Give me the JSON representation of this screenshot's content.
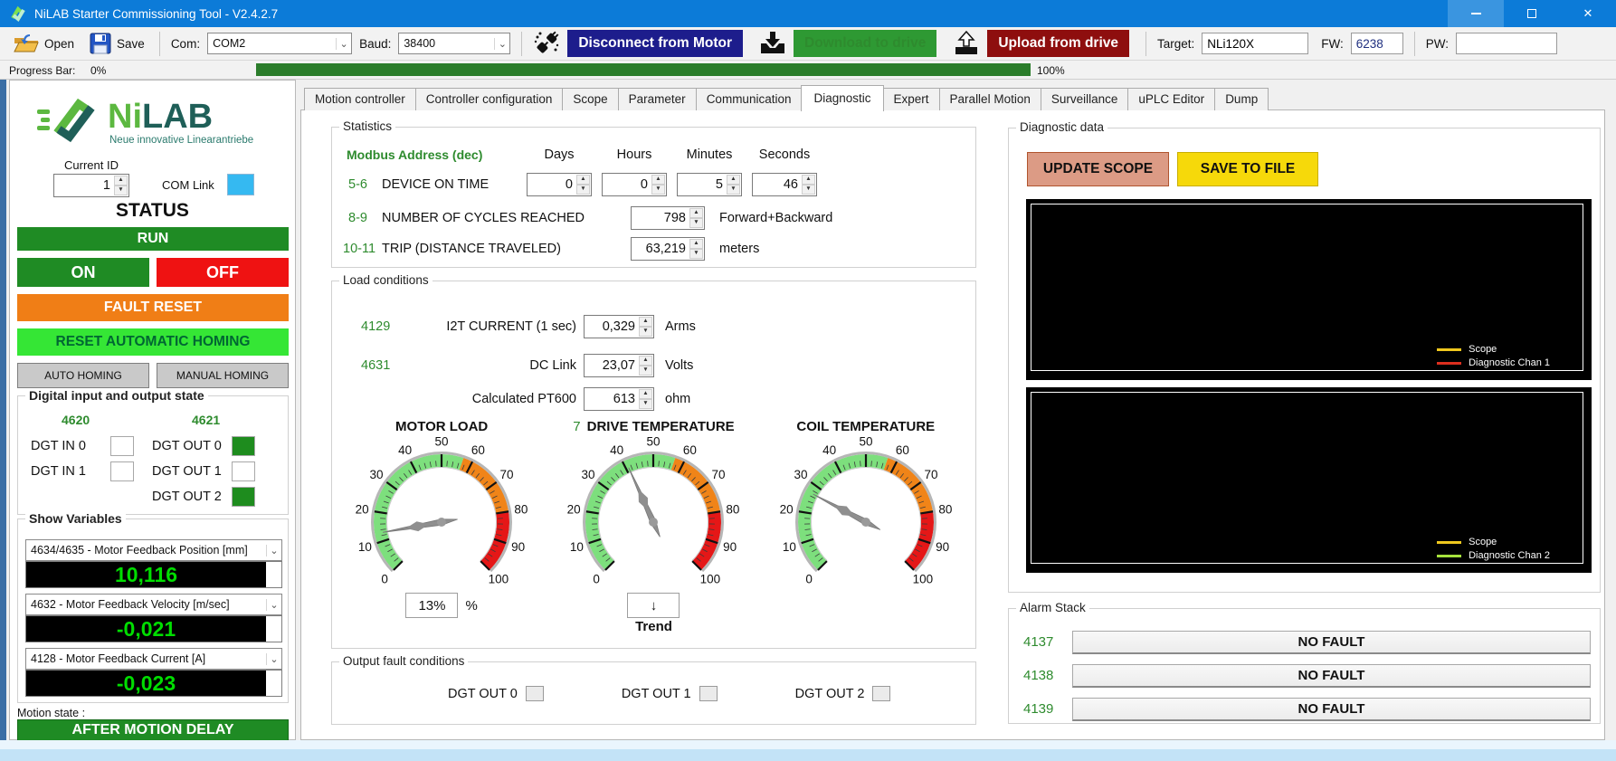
{
  "window": {
    "title": "NiLAB Starter Commissioning Tool - V2.4.2.7"
  },
  "icons": {
    "minimize": "–",
    "maximize": "□",
    "close": "✕",
    "dropdown": "⌄",
    "combo_dropdown": "▾",
    "spin_up": "▲",
    "spin_down": "▼",
    "trend_down": "↓",
    "open": "open-folder-icon",
    "save": "floppy-disk-icon",
    "disconnect": "plug-icon",
    "download": "download-tray-icon",
    "upload": "upload-tray-icon"
  },
  "colors": {
    "titlebar_blue": "#0c7bd8",
    "navy_button": "#1d1d8c",
    "green_button": "#2e9933",
    "dark_red_button": "#8e0e0e",
    "progress_green": "#2b7d2b",
    "run_green": "#1f8b24",
    "off_red": "#ef1212",
    "fault_orange": "#f07e16",
    "reset_homing_green": "#35e635",
    "address_green": "#2e8b2e",
    "lcd_green": "#00dd00",
    "com_link_cyan": "#35b9f1",
    "update_scope_salmon": "#dc9b85",
    "save_to_file_yellow": "#f6d90a"
  },
  "toolbar": {
    "open_label": "Open",
    "save_label": "Save",
    "com_label": "Com:",
    "com_value": "COM2",
    "baud_label": "Baud:",
    "baud_value": "38400",
    "disconnect_label": "Disconnect from Motor",
    "download_label": "Download to drive",
    "upload_label": "Upload from drive",
    "target_label": "Target:",
    "target_value": "NLi120X",
    "fw_label": "FW:",
    "fw_value": "6238",
    "pw_label": "PW:",
    "pw_value": ""
  },
  "progress": {
    "label": "Progress Bar:",
    "start": "0%",
    "end": "100%",
    "fill_percent": 100
  },
  "sidebar": {
    "logo": {
      "text_green": "Ni",
      "text_dark": "LAB",
      "subtitle": "Neue innovative Linearantriebe"
    },
    "current_id": {
      "label": "Current ID",
      "value": "1"
    },
    "com_link_label": "COM Link",
    "status_title": "STATUS",
    "run_label": "RUN",
    "on_label": "ON",
    "off_label": "OFF",
    "fault_reset_label": "FAULT RESET",
    "reset_homing_label": "RESET AUTOMATIC HOMING",
    "auto_homing_label": "AUTO HOMING",
    "manual_homing_label": "MANUAL HOMING",
    "dio": {
      "title": "Digital input and output state",
      "in_address": "4620",
      "out_address": "4621",
      "inputs": [
        {
          "label": "DGT IN 0",
          "active": false
        },
        {
          "label": "DGT IN 1",
          "active": false
        }
      ],
      "outputs": [
        {
          "label": "DGT OUT 0",
          "active": true
        },
        {
          "label": "DGT OUT 1",
          "active": false
        },
        {
          "label": "DGT OUT 2",
          "active": true
        }
      ]
    },
    "show_variables": {
      "title": "Show Variables",
      "rows": [
        {
          "option": "4634/4635 - Motor Feedback Position [mm]",
          "value": "10,116"
        },
        {
          "option": "4632 - Motor Feedback Velocity [m/sec]",
          "value": "-0,021"
        },
        {
          "option": "4128 - Motor Feedback Current [A]",
          "value": "-0,023"
        }
      ]
    },
    "motion_state_label": "Motion state :",
    "motion_state_value": "AFTER MOTION DELAY"
  },
  "tabs": {
    "items": [
      "Motion controller",
      "Controller configuration",
      "Scope",
      "Parameter",
      "Communication",
      "Diagnostic",
      "Expert",
      "Parallel Motion",
      "Surveillance",
      "uPLC Editor",
      "Dump"
    ],
    "active": "Diagnostic"
  },
  "statistics": {
    "title": "Statistics",
    "address_header": "Modbus Address (dec)",
    "time_headers": [
      "Days",
      "Hours",
      "Minutes",
      "Seconds"
    ],
    "device_on_time": {
      "address": "5-6",
      "label": "DEVICE ON TIME",
      "values": [
        "0",
        "0",
        "5",
        "46"
      ]
    },
    "cycles": {
      "address": "8-9",
      "label": "NUMBER OF CYCLES REACHED",
      "value": "798",
      "unit": "Forward+Backward"
    },
    "trip": {
      "address": "10-11",
      "label": "TRIP (DISTANCE TRAVELED)",
      "value": "63,219",
      "unit": "meters"
    }
  },
  "load_conditions": {
    "title": "Load conditions",
    "rows": [
      {
        "address": "4129",
        "label": "I2T CURRENT (1 sec)",
        "value": "0,329",
        "unit": "Arms"
      },
      {
        "address": "4631",
        "label": "DC Link",
        "value": "23,07",
        "unit": "Volts"
      },
      {
        "address": "",
        "label": "Calculated PT600",
        "value": "613",
        "unit": "ohm"
      }
    ],
    "gauges": [
      {
        "title": "MOTOR LOAD",
        "prefix": "",
        "value": 13,
        "min": 0,
        "max": 100,
        "tick_step": 10,
        "segments": [
          [
            0,
            57,
            "#7ddf7d"
          ],
          [
            57,
            80,
            "#f08418"
          ],
          [
            80,
            100,
            "#e51717"
          ]
        ],
        "readout_box": "13%",
        "readout_side": "%",
        "readout_under": ""
      },
      {
        "title": "DRIVE TEMPERATURE",
        "prefix": "7",
        "value": 41,
        "min": 0,
        "max": 100,
        "tick_step": 10,
        "segments": [
          [
            0,
            57,
            "#7ddf7d"
          ],
          [
            57,
            80,
            "#f08418"
          ],
          [
            80,
            100,
            "#e51717"
          ]
        ],
        "readout_box": "↓",
        "readout_side": "",
        "readout_under": "Trend"
      },
      {
        "title": "COIL TEMPERATURE",
        "prefix": "",
        "value": 27,
        "min": 0,
        "max": 100,
        "tick_step": 10,
        "segments": [
          [
            0,
            57,
            "#7ddf7d"
          ],
          [
            57,
            80,
            "#f08418"
          ],
          [
            80,
            100,
            "#e51717"
          ]
        ],
        "readout_box": "",
        "readout_side": "",
        "readout_under": ""
      }
    ]
  },
  "output_fault": {
    "title": "Output fault conditions",
    "items": [
      {
        "label": "DGT OUT 0"
      },
      {
        "label": "DGT OUT 1"
      },
      {
        "label": "DGT OUT 2"
      }
    ]
  },
  "diagnostic": {
    "title": "Diagnostic data",
    "update_button": "UPDATE SCOPE",
    "save_button": "SAVE TO FILE",
    "scopes": [
      {
        "legend": [
          {
            "label": "Scope",
            "color": "#f0c81e"
          },
          {
            "label": "Diagnostic Chan 1",
            "color": "#dd2f1f"
          }
        ]
      },
      {
        "legend": [
          {
            "label": "Scope",
            "color": "#f0c81e"
          },
          {
            "label": "Diagnostic Chan 2",
            "color": "#a6e23c"
          }
        ]
      }
    ]
  },
  "alarm_stack": {
    "title": "Alarm Stack",
    "rows": [
      {
        "address": "4137",
        "status": "NO FAULT"
      },
      {
        "address": "4138",
        "status": "NO FAULT"
      },
      {
        "address": "4139",
        "status": "NO FAULT"
      }
    ]
  }
}
